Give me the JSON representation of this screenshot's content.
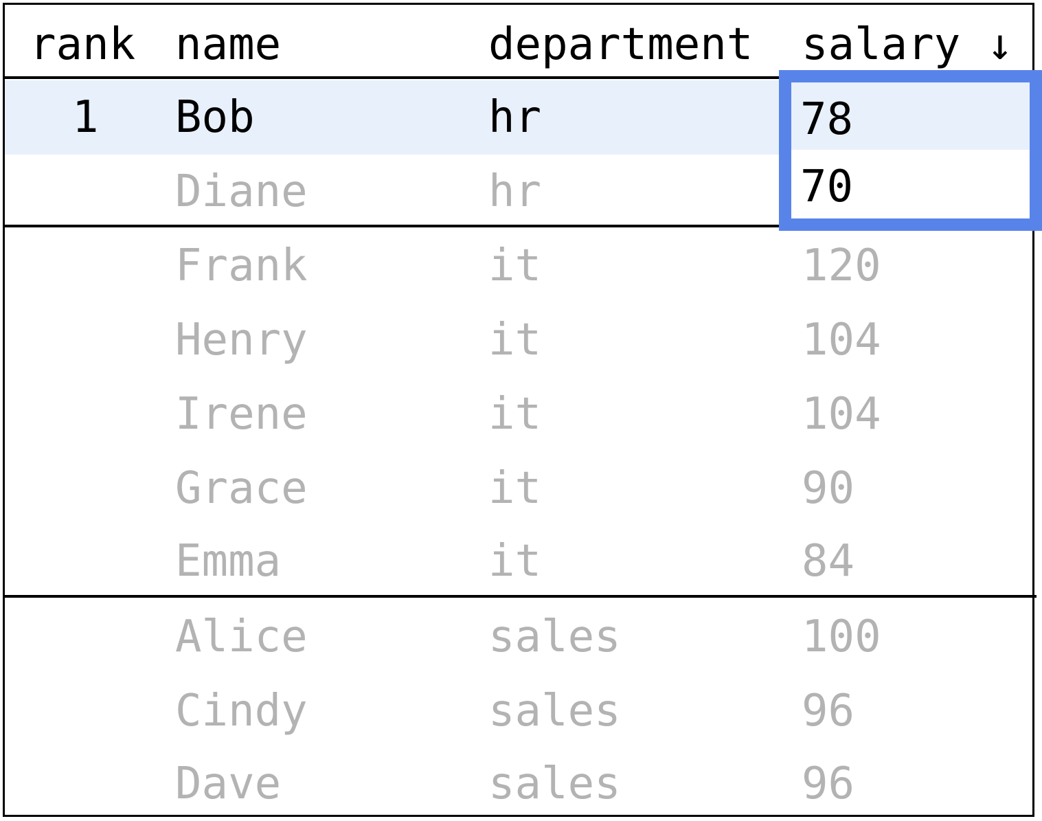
{
  "columns": {
    "rank": "rank",
    "name": "name",
    "department": "department",
    "salary": "salary ↓"
  },
  "rows": [
    {
      "rank": "1",
      "name": "Bob",
      "department": "hr",
      "salary": "78"
    },
    {
      "rank": "",
      "name": "Diane",
      "department": "hr",
      "salary": "70"
    },
    {
      "rank": "",
      "name": "Frank",
      "department": "it",
      "salary": "120"
    },
    {
      "rank": "",
      "name": "Henry",
      "department": "it",
      "salary": "104"
    },
    {
      "rank": "",
      "name": "Irene",
      "department": "it",
      "salary": "104"
    },
    {
      "rank": "",
      "name": "Grace",
      "department": "it",
      "salary": "90"
    },
    {
      "rank": "",
      "name": "Emma",
      "department": "it",
      "salary": "84"
    },
    {
      "rank": "",
      "name": "Alice",
      "department": "sales",
      "salary": "100"
    },
    {
      "rank": "",
      "name": "Cindy",
      "department": "sales",
      "salary": "96"
    },
    {
      "rank": "",
      "name": "Dave",
      "department": "sales",
      "salary": "96"
    }
  ],
  "colors": {
    "active_row": "#e8f0fb",
    "frame_outline": "#5884ea",
    "faded_text": "#b3b3b3"
  }
}
